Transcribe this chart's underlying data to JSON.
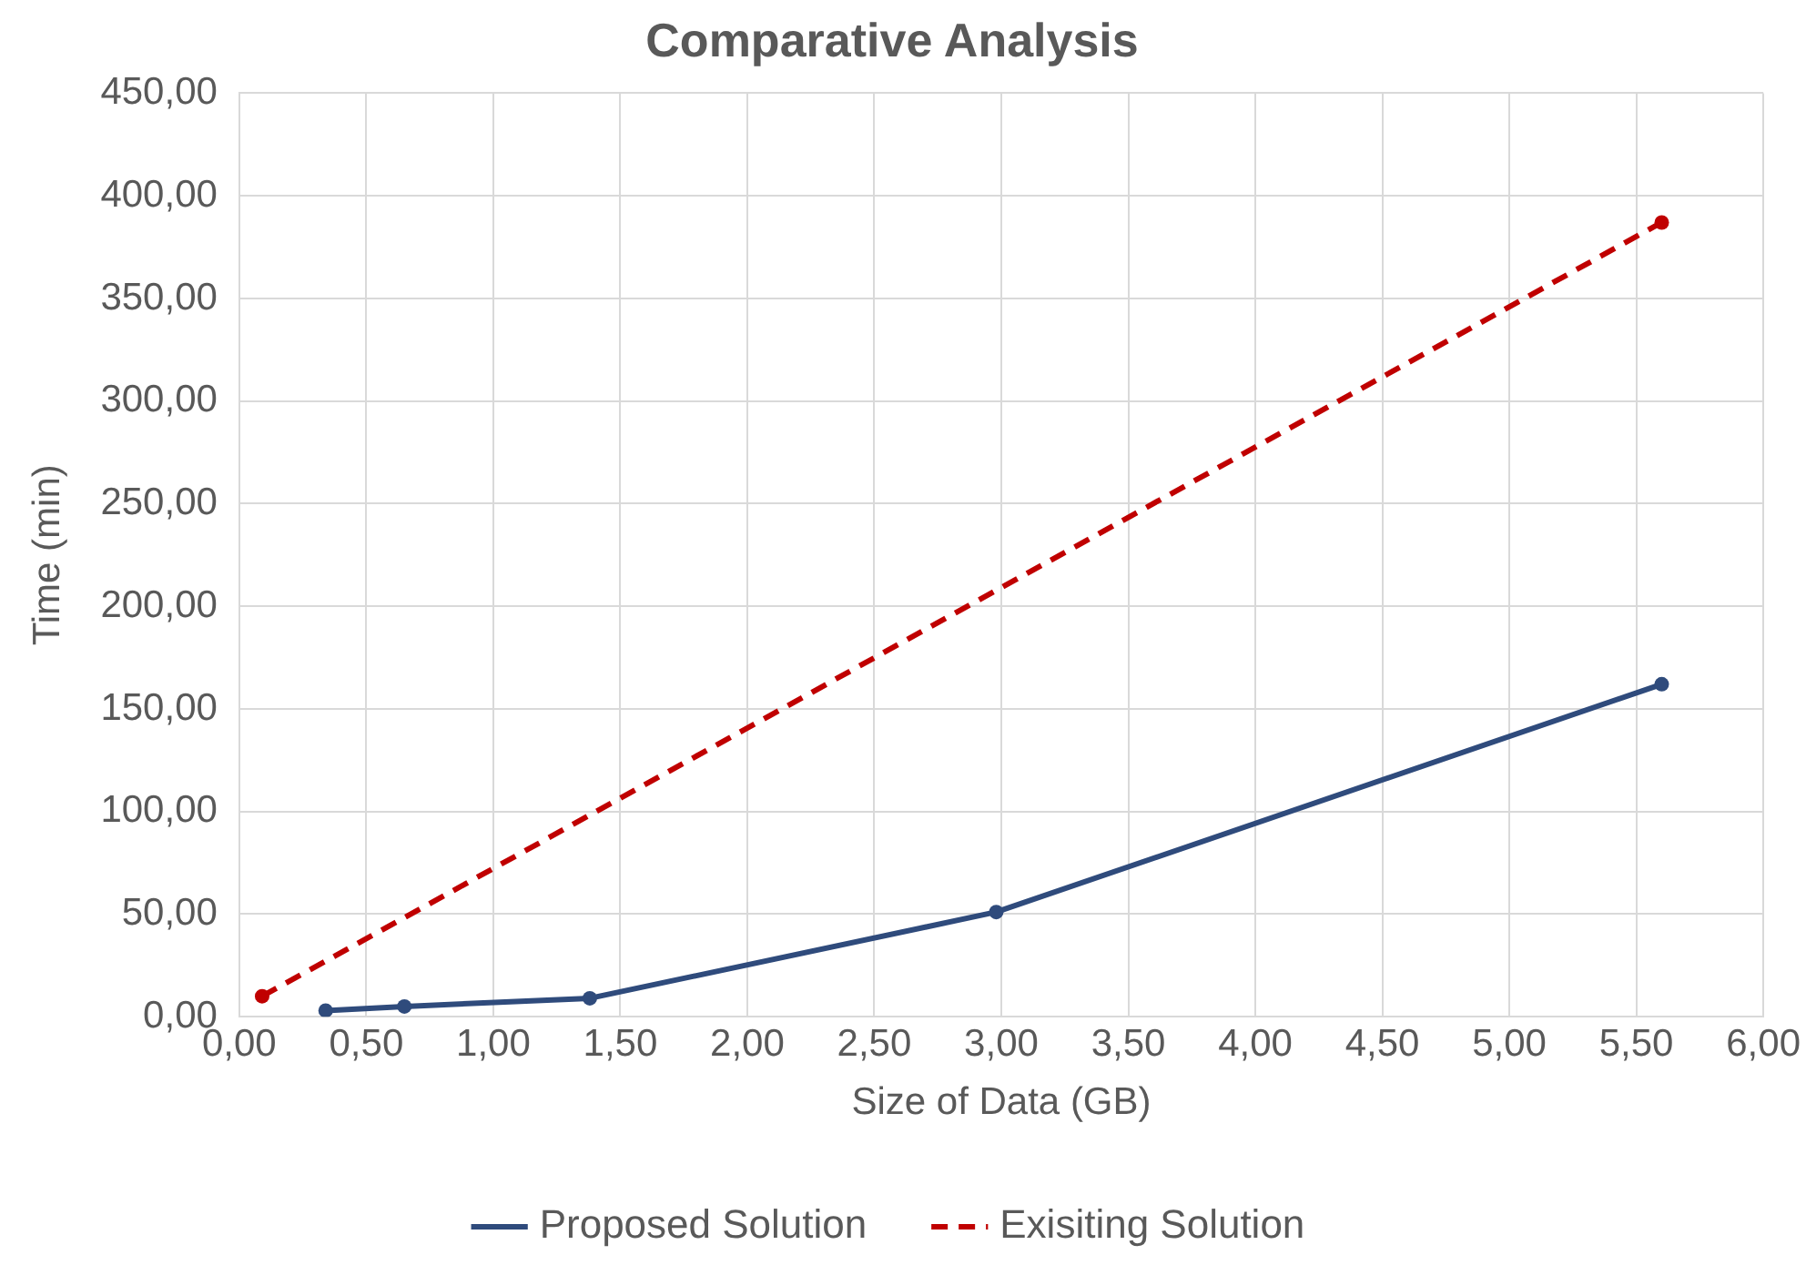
{
  "chart_data": {
    "type": "line",
    "title": "Comparative Analysis",
    "xlabel": "Size of Data (GB)",
    "ylabel": "Time (min)",
    "xlim": [
      0,
      6
    ],
    "ylim": [
      0,
      450
    ],
    "xticks": [
      {
        "value": 0,
        "label": "0,00"
      },
      {
        "value": 0.5,
        "label": "0,50"
      },
      {
        "value": 1,
        "label": "1,00"
      },
      {
        "value": 1.5,
        "label": "1,50"
      },
      {
        "value": 2,
        "label": "2,00"
      },
      {
        "value": 2.5,
        "label": "2,50"
      },
      {
        "value": 3,
        "label": "3,00"
      },
      {
        "value": 3.5,
        "label": "3,50"
      },
      {
        "value": 4,
        "label": "4,00"
      },
      {
        "value": 4.5,
        "label": "4,50"
      },
      {
        "value": 5,
        "label": "5,00"
      },
      {
        "value": 5.5,
        "label": "5,50"
      },
      {
        "value": 6,
        "label": "6,00"
      }
    ],
    "yticks": [
      {
        "value": 0,
        "label": "0,00"
      },
      {
        "value": 50,
        "label": "50,00"
      },
      {
        "value": 100,
        "label": "100,00"
      },
      {
        "value": 150,
        "label": "150,00"
      },
      {
        "value": 200,
        "label": "200,00"
      },
      {
        "value": 250,
        "label": "250,00"
      },
      {
        "value": 300,
        "label": "300,00"
      },
      {
        "value": 350,
        "label": "350,00"
      },
      {
        "value": 400,
        "label": "400,00"
      },
      {
        "value": 450,
        "label": "450,00"
      }
    ],
    "grid": true,
    "legend": "bottom",
    "marker": "circle",
    "series": [
      {
        "name": "Proposed Solution",
        "color": "#2f4b7c",
        "line_style": "solid",
        "x": [
          0.34,
          0.65,
          1.38,
          2.98,
          5.6
        ],
        "values": [
          3,
          5,
          9,
          51,
          162
        ]
      },
      {
        "name": "Exisiting Solution",
        "color": "#c00000",
        "line_style": "dashed",
        "x": [
          0.09,
          5.6
        ],
        "values": [
          10,
          387
        ]
      }
    ]
  }
}
